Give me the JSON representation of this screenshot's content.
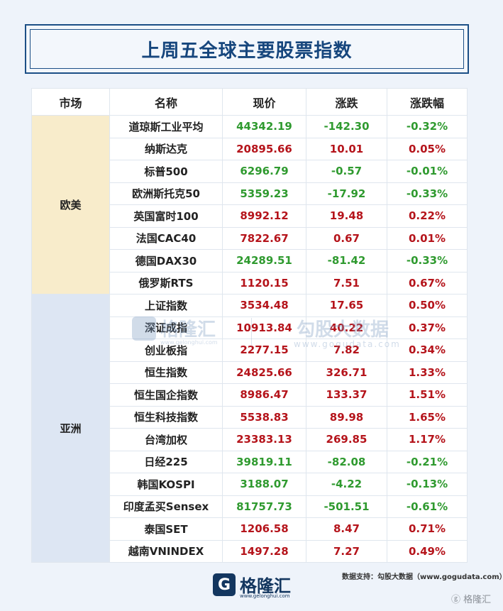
{
  "title": "上周五全球主要股票指数",
  "headers": [
    "市场",
    "名称",
    "现价",
    "涨跌",
    "涨跌幅"
  ],
  "groups": [
    {
      "market": "欧美",
      "rows": [
        {
          "name": "道琼斯工业平均",
          "price": "44342.19",
          "change": "-142.30",
          "pct": "-0.32%",
          "dir": "down"
        },
        {
          "name": "纳斯达克",
          "price": "20895.66",
          "change": "10.01",
          "pct": "0.05%",
          "dir": "up"
        },
        {
          "name": "标普500",
          "price": "6296.79",
          "change": "-0.57",
          "pct": "-0.01%",
          "dir": "down"
        },
        {
          "name": "欧洲斯托克50",
          "price": "5359.23",
          "change": "-17.92",
          "pct": "-0.33%",
          "dir": "down"
        },
        {
          "name": "英国富时100",
          "price": "8992.12",
          "change": "19.48",
          "pct": "0.22%",
          "dir": "up"
        },
        {
          "name": "法国CAC40",
          "price": "7822.67",
          "change": "0.67",
          "pct": "0.01%",
          "dir": "up"
        },
        {
          "name": "德国DAX30",
          "price": "24289.51",
          "change": "-81.42",
          "pct": "-0.33%",
          "dir": "down"
        },
        {
          "name": "俄罗斯RTS",
          "price": "1120.15",
          "change": "7.51",
          "pct": "0.67%",
          "dir": "up"
        }
      ]
    },
    {
      "market": "亚洲",
      "rows": [
        {
          "name": "上证指数",
          "price": "3534.48",
          "change": "17.65",
          "pct": "0.50%",
          "dir": "up"
        },
        {
          "name": "深证成指",
          "price": "10913.84",
          "change": "40.22",
          "pct": "0.37%",
          "dir": "up"
        },
        {
          "name": "创业板指",
          "price": "2277.15",
          "change": "7.82",
          "pct": "0.34%",
          "dir": "up"
        },
        {
          "name": "恒生指数",
          "price": "24825.66",
          "change": "326.71",
          "pct": "1.33%",
          "dir": "up"
        },
        {
          "name": "恒生国企指数",
          "price": "8986.47",
          "change": "133.37",
          "pct": "1.51%",
          "dir": "up"
        },
        {
          "name": "恒生科技指数",
          "price": "5538.83",
          "change": "89.98",
          "pct": "1.65%",
          "dir": "up"
        },
        {
          "name": "台湾加权",
          "price": "23383.13",
          "change": "269.85",
          "pct": "1.17%",
          "dir": "up"
        },
        {
          "name": "日经225",
          "price": "39819.11",
          "change": "-82.08",
          "pct": "-0.21%",
          "dir": "down"
        },
        {
          "name": "韩国KOSPI",
          "price": "3188.07",
          "change": "-4.22",
          "pct": "-0.13%",
          "dir": "down"
        },
        {
          "name": "印度孟买Sensex",
          "price": "81757.73",
          "change": "-501.51",
          "pct": "-0.61%",
          "dir": "down"
        },
        {
          "name": "泰国SET",
          "price": "1206.58",
          "change": "8.47",
          "pct": "0.71%",
          "dir": "up"
        },
        {
          "name": "越南VNINDEX",
          "price": "1497.28",
          "change": "7.27",
          "pct": "0.49%",
          "dir": "up"
        }
      ]
    }
  ],
  "watermark": {
    "brand": "格隆汇",
    "url_small": "www.gelonghui.com",
    "brand2": "勾股大数据",
    "url": "www.gogudata.com"
  },
  "footer": {
    "logo_letter": "G",
    "brand": "格隆汇",
    "url": "www.gelonghui.com",
    "source": "数据支持：勾股大数据（www.gogudata.com）",
    "corner": "ⓖ 格隆汇"
  },
  "colors": {
    "up": "#b5141b",
    "down": "#2f9a2f",
    "title": "#16467d",
    "europe_bg": "#f8eccb",
    "asia_bg": "#dde6f3"
  }
}
